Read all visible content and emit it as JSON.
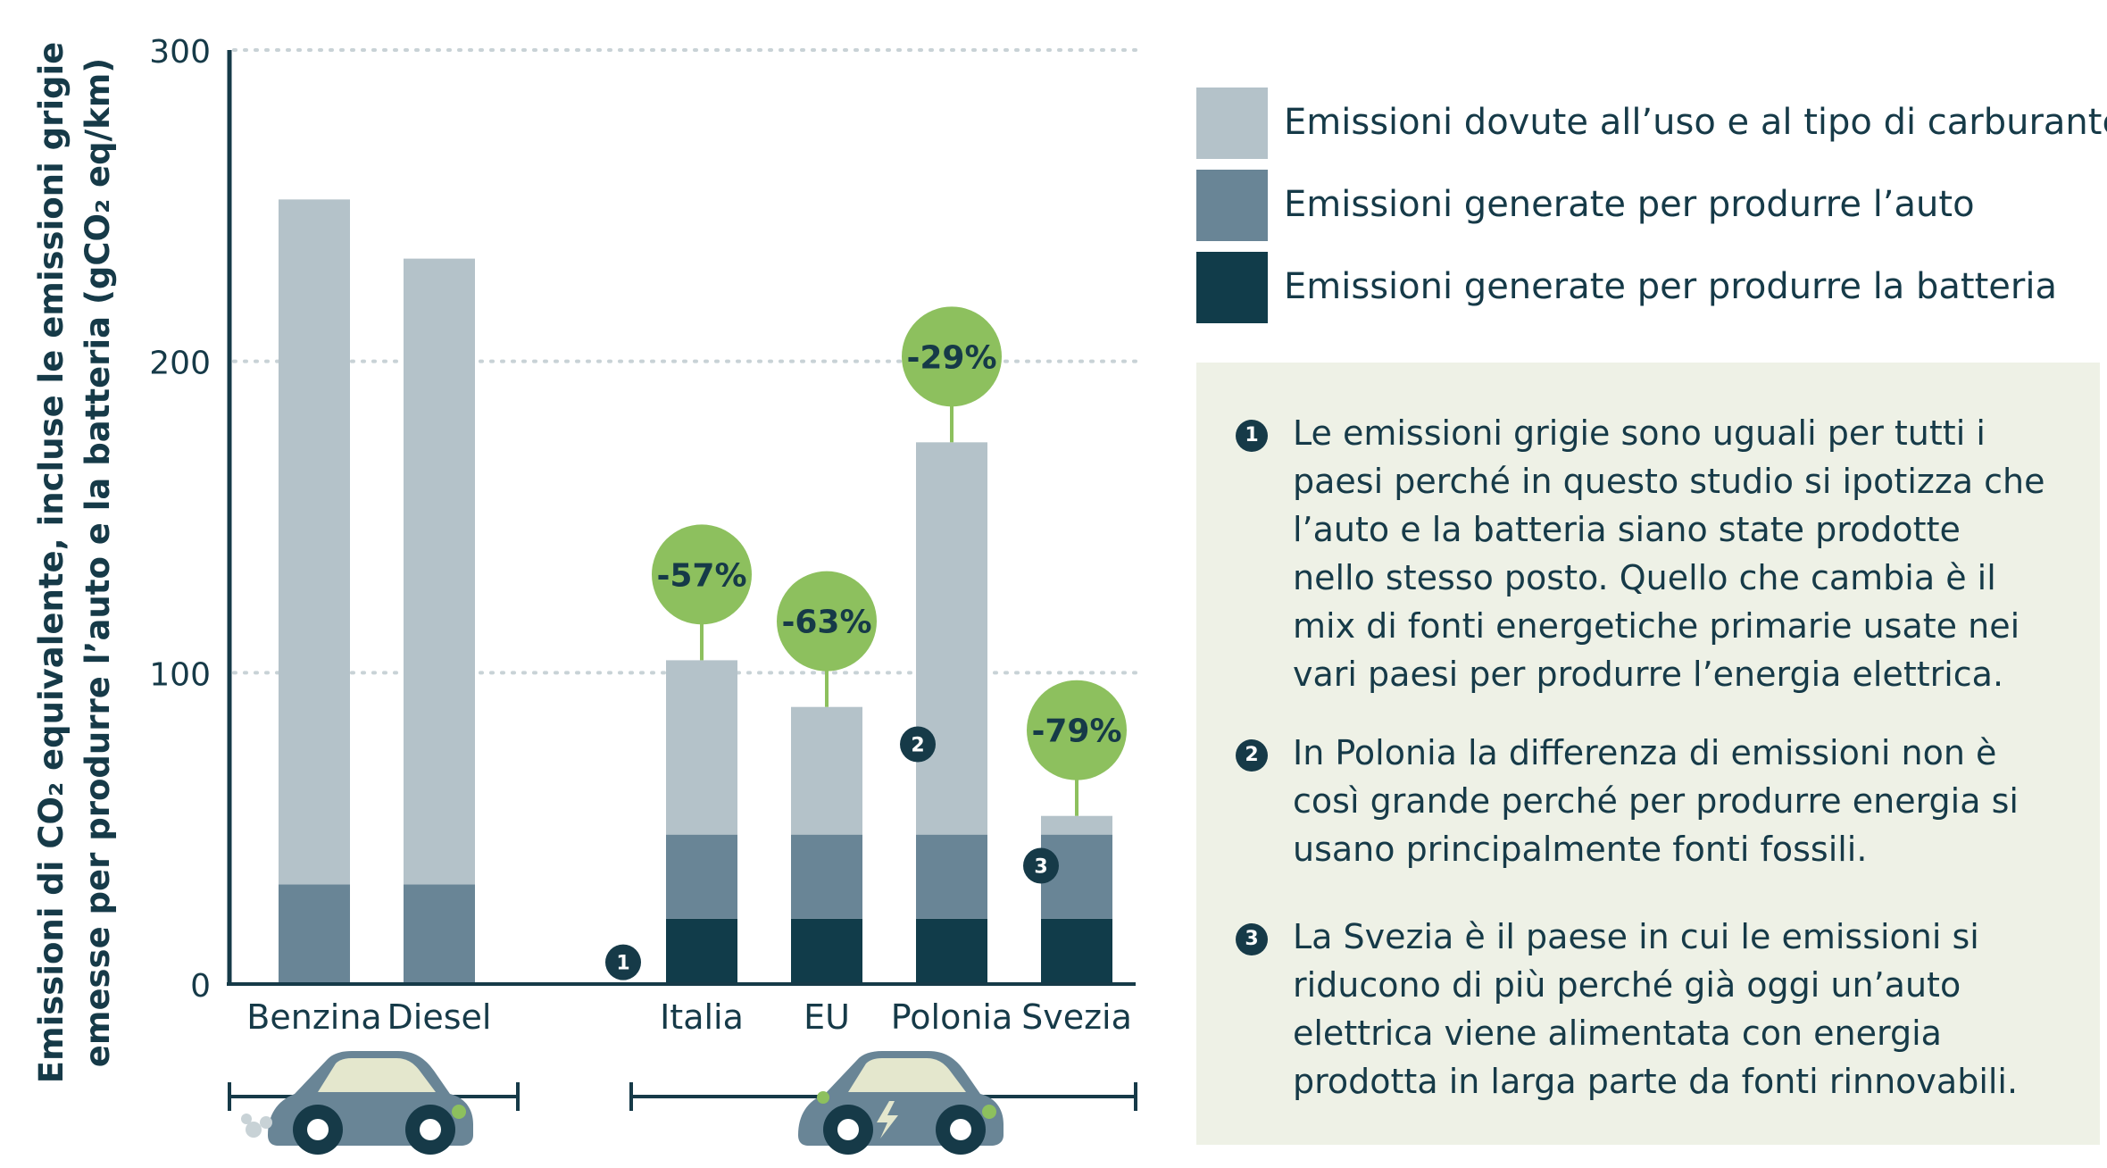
{
  "chart_data": {
    "type": "bar",
    "stacked": true,
    "ylabel_line1": "Emissioni di CO₂ equivalente, incluse le emissioni grigie",
    "ylabel_line2": "emesse per produrre l’auto e la batteria (gCO₂ eq/km)",
    "ylim": [
      0,
      300
    ],
    "yticks": [
      0,
      100,
      200,
      300
    ],
    "grid": true,
    "categories": [
      "Benzina",
      "Diesel",
      "Italia",
      "EU",
      "Polonia",
      "Svezia"
    ],
    "series": [
      {
        "name": "Emissioni generate per produrre la batteria",
        "color": "#113c4a",
        "values": [
          0,
          0,
          21,
          21,
          21,
          21
        ]
      },
      {
        "name": "Emissioni generate per produrre l’auto",
        "color": "#698596",
        "values": [
          32,
          32,
          27,
          27,
          27,
          27
        ]
      },
      {
        "name": "Emissioni dovute all’uso e al tipo di carburante",
        "color": "#b4c2c9",
        "values": [
          220,
          201,
          56,
          41,
          126,
          6
        ]
      }
    ],
    "reductions": [
      {
        "category": "Italia",
        "label": "-57%"
      },
      {
        "category": "EU",
        "label": "-63%"
      },
      {
        "category": "Polonia",
        "label": "-29%"
      },
      {
        "category": "Svezia",
        "label": "-79%"
      }
    ],
    "markers": [
      {
        "category": "Italia",
        "number": "1"
      },
      {
        "category": "Polonia",
        "number": "2"
      },
      {
        "category": "Svezia",
        "number": "3"
      }
    ],
    "groups": [
      {
        "name": "combustion",
        "icon": "combustion-car-icon"
      },
      {
        "name": "electric",
        "icon": "electric-car-icon"
      }
    ]
  },
  "legend": [
    {
      "label": "Emissioni dovute all’uso e al tipo di carburante",
      "color": "#b4c2c9"
    },
    {
      "label": "Emissioni generate per produrre l’auto",
      "color": "#698596"
    },
    {
      "label": "Emissioni generate per produrre la batteria",
      "color": "#113c4a"
    }
  ],
  "notes": [
    {
      "number": "1",
      "text": "Le emissioni grigie sono uguali per tutti i paesi perché in questo studio si ipotizza che l’auto e la batteria siano state prodotte nello stesso posto. Quello che cambia è il mix di fonti energetiche primarie usate nei vari paesi per produrre l’energia elettrica."
    },
    {
      "number": "2",
      "text": "In Polonia la differenza di emissioni non è così grande perché per produrre energia si usano principalmente fonti fossili."
    },
    {
      "number": "3",
      "text": "La Svezia è il paese in cui le emissioni si riducono di più perché già oggi un’auto elettrica viene alimentata con energia prodotta in larga parte da fonti rinnovabili."
    }
  ],
  "colors": {
    "accent_green": "#8dc05e",
    "badge_text": "#163a48",
    "axis": "#163a48",
    "grid": "#c8d2d6"
  }
}
